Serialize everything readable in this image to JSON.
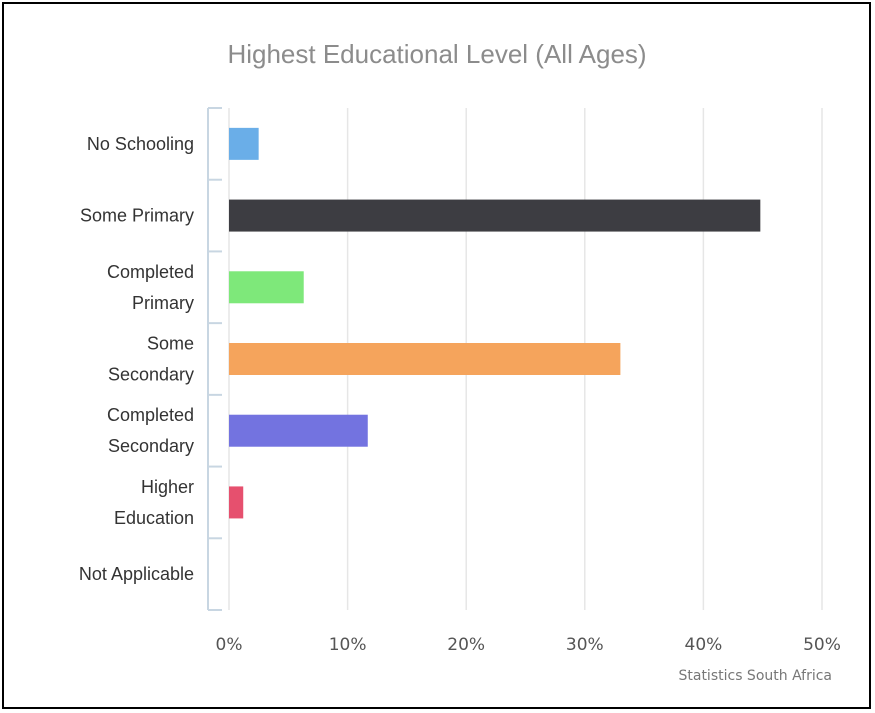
{
  "chart_data": {
    "type": "bar",
    "orientation": "horizontal",
    "title": "Highest Educational Level (All Ages)",
    "categories": [
      [
        "No Schooling"
      ],
      [
        "Some Primary"
      ],
      [
        "Completed",
        "Primary"
      ],
      [
        "Some",
        "Secondary"
      ],
      [
        "Completed",
        "Secondary"
      ],
      [
        "Higher",
        "Education"
      ],
      [
        "Not Applicable"
      ]
    ],
    "values": [
      2.5,
      44.8,
      6.3,
      33.0,
      11.7,
      1.2,
      0
    ],
    "colors": [
      "#6aaee8",
      "#3d3d42",
      "#7ee87a",
      "#f5a45c",
      "#7373e0",
      "#e6506e",
      "#cccccc"
    ],
    "xlim": [
      0,
      50
    ],
    "x_ticks": [
      0,
      10,
      20,
      30,
      40,
      50
    ],
    "x_tick_labels": [
      "0%",
      "10%",
      "20%",
      "30%",
      "40%",
      "50%"
    ],
    "grid": true,
    "legend": "none",
    "source": "Statistics South Africa"
  }
}
